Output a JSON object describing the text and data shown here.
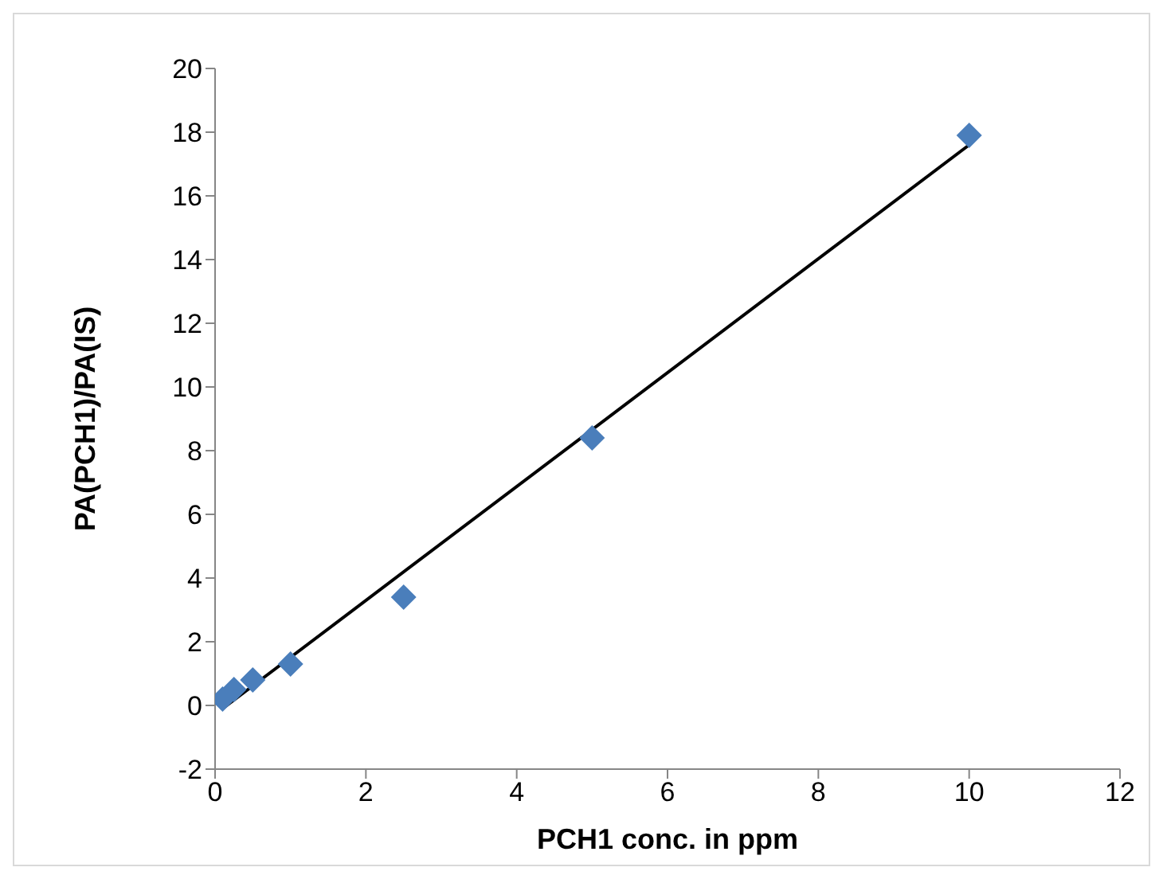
{
  "chart_data": {
    "type": "scatter",
    "xlabel": "PCH1 conc. in ppm",
    "ylabel": "PA(PCH1)/PA(IS)",
    "xlim": [
      0,
      12
    ],
    "xticks": [
      0,
      2,
      4,
      6,
      8,
      10,
      12
    ],
    "ylim": [
      -2,
      20
    ],
    "yticks": [
      -2,
      0,
      2,
      4,
      6,
      8,
      10,
      12,
      14,
      16,
      18,
      20
    ],
    "grid": false,
    "legend": false,
    "marker": "diamond",
    "series": [
      {
        "color": "#4a7ebb",
        "x": [
          0.1,
          0.25,
          0.5,
          1,
          2.5,
          5,
          10
        ],
        "values": [
          0.2,
          0.5,
          0.8,
          1.3,
          3.4,
          8.4,
          17.9
        ]
      },
      {
        "type": "line",
        "color": "#000000",
        "marker": "none",
        "x": [
          0.1,
          10
        ],
        "values": [
          -0.1,
          17.6
        ]
      }
    ]
  }
}
